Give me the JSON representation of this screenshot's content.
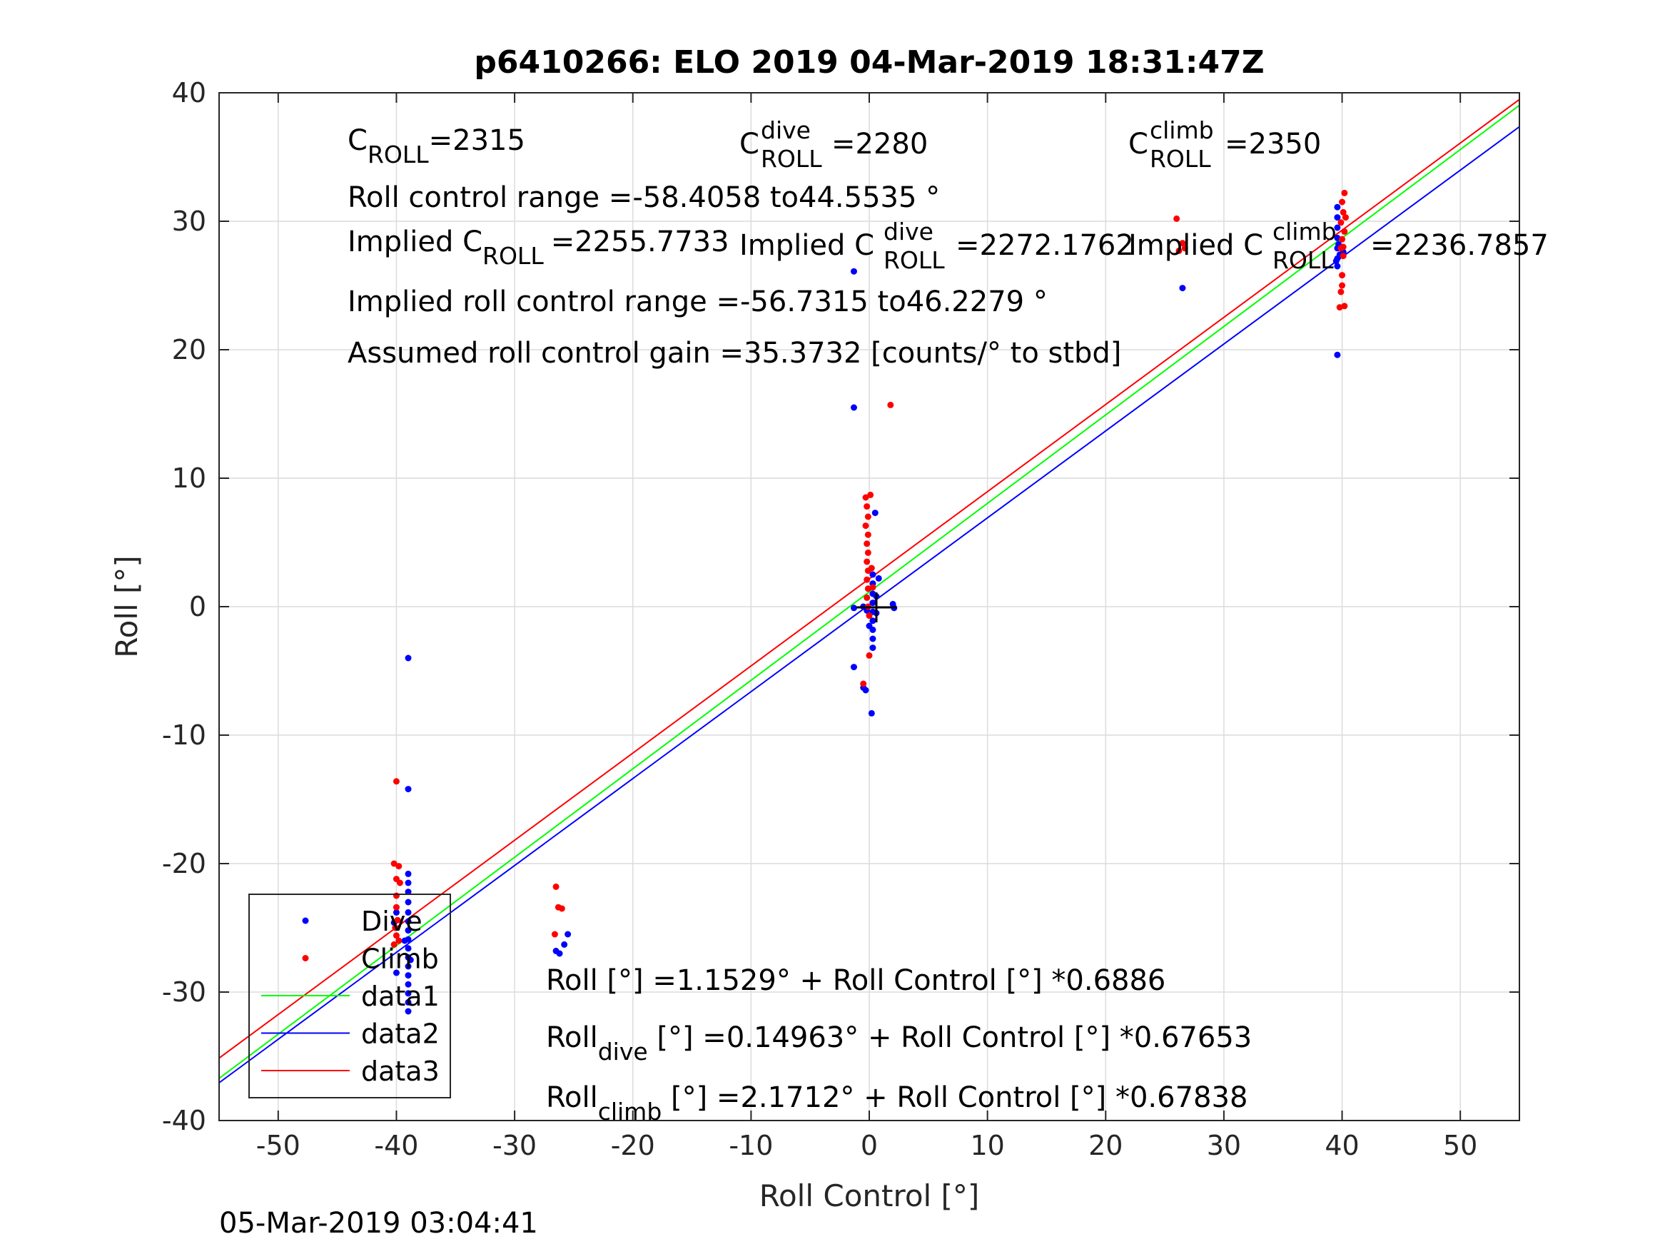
{
  "chart_data": {
    "type": "scatter",
    "title": "p6410266: ELO 2019 04-Mar-2019 18:31:47Z",
    "xlabel": "Roll Control [°]",
    "ylabel": "Roll [°]",
    "xlim": [
      -55,
      55
    ],
    "ylim": [
      -40,
      40
    ],
    "xticks": [
      -50,
      -40,
      -30,
      -20,
      -10,
      0,
      10,
      20,
      30,
      40,
      50
    ],
    "yticks": [
      -40,
      -30,
      -20,
      -10,
      0,
      10,
      20,
      30,
      40
    ],
    "grid": true,
    "legend_position": "bottom-left",
    "timestamp": "05-Mar-2019 03:04:41",
    "colors": {
      "dive": "#0000ff",
      "climb": "#ff0000",
      "data1": "#00ff00",
      "data2": "#0000ff",
      "data3": "#ff0000"
    },
    "series": [
      {
        "name": "Dive",
        "kind": "points",
        "points": [
          [
            -39,
            -4.0
          ],
          [
            -39,
            -14.2
          ],
          [
            -39,
            -20.8
          ],
          [
            -39,
            -21.5
          ],
          [
            -39,
            -22.2
          ],
          [
            -39,
            -23.0
          ],
          [
            -39,
            -23.8
          ],
          [
            -39,
            -24.5
          ],
          [
            -39,
            -25.2
          ],
          [
            -39,
            -25.9
          ],
          [
            -39,
            -26.6
          ],
          [
            -39,
            -27.3
          ],
          [
            -39,
            -28.0
          ],
          [
            -39,
            -28.7
          ],
          [
            -39,
            -29.4
          ],
          [
            -39,
            -30.1
          ],
          [
            -39,
            -30.8
          ],
          [
            -39,
            -31.5
          ],
          [
            -39.3,
            -26.0
          ],
          [
            -38.8,
            -27.5
          ],
          [
            -40,
            -28.5
          ],
          [
            -40,
            -23.8
          ],
          [
            -40.2,
            -24.6
          ],
          [
            -25.5,
            -25.5
          ],
          [
            -25.8,
            -26.3
          ],
          [
            -26.5,
            -26.8
          ],
          [
            -26.2,
            -27.0
          ],
          [
            -1.3,
            26.1
          ],
          [
            -1.3,
            15.5
          ],
          [
            -1.3,
            -4.7
          ],
          [
            -1.3,
            -0.1
          ],
          [
            -0.5,
            -6.3
          ],
          [
            -0.3,
            -6.5
          ],
          [
            0.2,
            -8.3
          ],
          [
            0.5,
            7.3
          ],
          [
            0.3,
            2.5
          ],
          [
            0.3,
            1.8
          ],
          [
            0.3,
            1.0
          ],
          [
            0.3,
            0.3
          ],
          [
            0.3,
            -0.4
          ],
          [
            0.3,
            -1.1
          ],
          [
            0.3,
            -1.8
          ],
          [
            0.3,
            -2.5
          ],
          [
            0.3,
            -3.2
          ],
          [
            0.6,
            0.8
          ],
          [
            0.6,
            -0.5
          ],
          [
            0.0,
            -1.5
          ],
          [
            -0.2,
            -0.3
          ],
          [
            2.0,
            0.2
          ],
          [
            2.1,
            -0.1
          ],
          [
            0.8,
            2.2
          ],
          [
            -0.5,
            0.0
          ],
          [
            26.5,
            24.8
          ],
          [
            39.6,
            31.1
          ],
          [
            39.6,
            30.3
          ],
          [
            39.6,
            29.5
          ],
          [
            39.6,
            28.7
          ],
          [
            39.6,
            27.9
          ],
          [
            39.6,
            27.1
          ],
          [
            39.6,
            26.5
          ],
          [
            39.8,
            27.4
          ],
          [
            39.5,
            26.9
          ],
          [
            39.7,
            28.2
          ],
          [
            39.6,
            19.6
          ],
          [
            40.1,
            27.6
          ]
        ]
      },
      {
        "name": "Climb",
        "kind": "points",
        "points": [
          [
            -40,
            -13.6
          ],
          [
            -40.2,
            -20.0
          ],
          [
            -39.8,
            -20.2
          ],
          [
            -40,
            -21.2
          ],
          [
            -39.7,
            -21.5
          ],
          [
            -40,
            -22.5
          ],
          [
            -40,
            -23.4
          ],
          [
            -39.9,
            -24.4
          ],
          [
            -40.1,
            -25.0
          ],
          [
            -40,
            -25.6
          ],
          [
            -39.8,
            -26.0
          ],
          [
            -40.2,
            -26.3
          ],
          [
            -26.5,
            -21.8
          ],
          [
            -26.3,
            -23.4
          ],
          [
            -26.0,
            -23.5
          ],
          [
            -26.6,
            -25.5
          ],
          [
            -0.3,
            8.5
          ],
          [
            0.1,
            8.7
          ],
          [
            -0.2,
            7.8
          ],
          [
            -0.1,
            7.0
          ],
          [
            -0.3,
            6.3
          ],
          [
            -0.1,
            5.6
          ],
          [
            -0.2,
            4.9
          ],
          [
            -0.1,
            4.2
          ],
          [
            -0.2,
            3.5
          ],
          [
            -0.1,
            2.8
          ],
          [
            -0.2,
            2.1
          ],
          [
            -0.1,
            1.4
          ],
          [
            -0.2,
            0.7
          ],
          [
            -0.1,
            0.0
          ],
          [
            0.0,
            -0.7
          ],
          [
            0.0,
            -3.8
          ],
          [
            -0.5,
            -6.0
          ],
          [
            1.8,
            15.7
          ],
          [
            0.2,
            3.0
          ],
          [
            0.3,
            1.5
          ],
          [
            26.0,
            30.2
          ],
          [
            26.5,
            28.3
          ],
          [
            26.2,
            27.7
          ],
          [
            26.7,
            27.9
          ],
          [
            40.2,
            32.2
          ],
          [
            40.0,
            31.5
          ],
          [
            40.1,
            30.7
          ],
          [
            39.9,
            29.9
          ],
          [
            40.2,
            29.2
          ],
          [
            40.0,
            28.6
          ],
          [
            39.9,
            27.9
          ],
          [
            40.1,
            27.3
          ],
          [
            40.0,
            25.8
          ],
          [
            40.0,
            25.0
          ],
          [
            39.9,
            24.5
          ],
          [
            40.2,
            23.4
          ],
          [
            39.8,
            23.3
          ],
          [
            40.3,
            30.3
          ],
          [
            40.1,
            28.0
          ]
        ]
      },
      {
        "name": "data1",
        "kind": "line",
        "intercept": 1.1529,
        "slope": 0.6886
      },
      {
        "name": "data2",
        "kind": "line",
        "intercept": 0.14963,
        "slope": 0.67653
      },
      {
        "name": "data3",
        "kind": "line",
        "intercept": 2.1712,
        "slope": 0.67838
      }
    ],
    "annotations": {
      "c_roll": {
        "base": "C",
        "sub": "ROLL",
        "value": "=2315"
      },
      "c_roll_dive": {
        "base": "C",
        "sup": "dive",
        "sub": "ROLL",
        "value": "=2280"
      },
      "c_roll_climb": {
        "base": "C",
        "sup": "climb",
        "sub": "ROLL",
        "value": "=2350"
      },
      "control_range": "Roll control range =-58.4058 to44.5535 °",
      "implied_c_roll": {
        "base": "Implied C",
        "sub": "ROLL",
        "value": "=2255.7733"
      },
      "implied_c_roll_dive": {
        "base": "Implied C",
        "sup": "dive",
        "sub": "ROLL",
        "value": "=2272.1762"
      },
      "implied_c_roll_climb": {
        "base": "Implied C",
        "sup": "climb",
        "sub": "ROLL",
        "value": "=2236.7857"
      },
      "implied_range": "Implied roll control range =-56.7315 to46.2279 °",
      "gain": "Assumed roll control gain =35.3732 [counts/° to stbd]",
      "fit_all": "Roll [°] =1.1529° + Roll Control [°] *0.6886",
      "fit_dive": {
        "base": "Roll",
        "sub": "dive",
        "value": " [°] =0.14963° + Roll Control [°] *0.67653"
      },
      "fit_climb": {
        "base": "Roll",
        "sub": "climb",
        "value": " [°] =2.1712° + Roll Control [°] *0.67838"
      }
    }
  }
}
